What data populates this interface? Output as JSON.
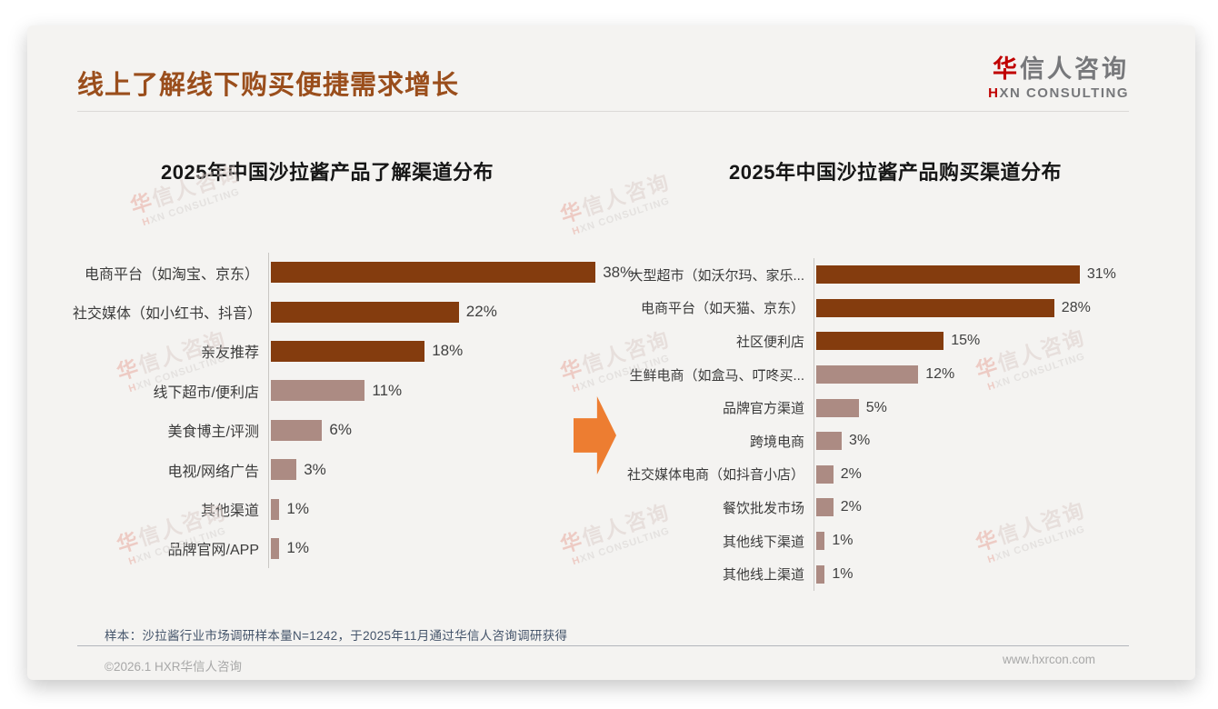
{
  "slide": {
    "title": "线上了解线下购买便捷需求增长",
    "sample_note": "样本：沙拉酱行业市场调研样本量N=1242，于2025年11月通过华信人咨询调研获得",
    "footer_left": "©2026.1 HXR华信人咨询",
    "footer_right": "www.hxrcon.com",
    "logo": {
      "zh_first": "华",
      "zh_rest": "信人咨询",
      "en_first": "H",
      "en_rest": "XN CONSULTING"
    },
    "watermark": {
      "zh_first": "华",
      "zh_rest": "信人咨询",
      "en_first": "H",
      "en_rest": "XN CONSULTING"
    }
  },
  "colors": {
    "title_brown": "#9a4e1c",
    "bar_dark": "#843c0e",
    "bar_light": "#ac8b83",
    "arrow_orange": "#ed7d31",
    "logo_red": "#c00000",
    "note_blue_gray": "#44546a",
    "card_background": "#f4f3f1"
  },
  "chart_data": [
    {
      "type": "bar",
      "orientation": "horizontal",
      "title": "2025年中国沙拉酱产品了解渠道分布",
      "categories": [
        "电商平台（如淘宝、京东）",
        "社交媒体（如小红书、抖音）",
        "亲友推荐",
        "线下超市/便利店",
        "美食博主/评测",
        "电视/网络广告",
        "其他渠道",
        "品牌官网/APP"
      ],
      "values": [
        38,
        22,
        18,
        11,
        6,
        3,
        1,
        1
      ],
      "value_labels": [
        "38%",
        "22%",
        "18%",
        "11%",
        "6%",
        "3%",
        "1%",
        "1%"
      ],
      "highlight": [
        1,
        1,
        1,
        0,
        0,
        0,
        0,
        0
      ],
      "xlabel": "",
      "ylabel": "",
      "xlim": [
        0,
        40
      ],
      "grid": false,
      "legend": false
    },
    {
      "type": "bar",
      "orientation": "horizontal",
      "title": "2025年中国沙拉酱产品购买渠道分布",
      "categories": [
        "大型超市（如沃尔玛、家乐...",
        "电商平台（如天猫、京东）",
        "社区便利店",
        "生鲜电商（如盒马、叮咚买...",
        "品牌官方渠道",
        "跨境电商",
        "社交媒体电商（如抖音小店）",
        "餐饮批发市场",
        "其他线下渠道",
        "其他线上渠道"
      ],
      "values": [
        31,
        28,
        15,
        12,
        5,
        3,
        2,
        2,
        1,
        1
      ],
      "value_labels": [
        "31%",
        "28%",
        "15%",
        "12%",
        "5%",
        "3%",
        "2%",
        "2%",
        "1%",
        "1%"
      ],
      "highlight": [
        1,
        1,
        1,
        0,
        0,
        0,
        0,
        0,
        0,
        0
      ],
      "xlabel": "",
      "ylabel": "",
      "xlim": [
        0,
        33
      ],
      "grid": false,
      "legend": false
    }
  ]
}
